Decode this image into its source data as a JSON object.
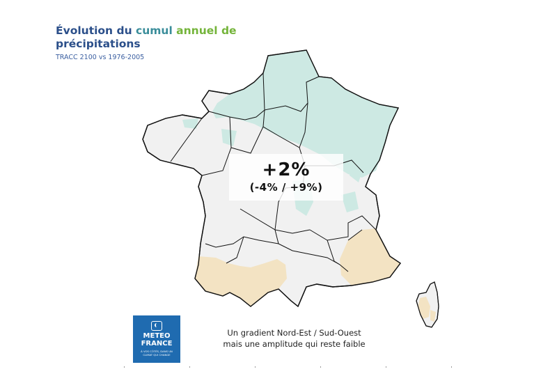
{
  "title": {
    "part1": "Évolution du ",
    "part2": "cumul",
    "part3": " annuel de",
    "line2": "précipitations"
  },
  "subtitle": "TRACC 2100 vs 1976-2005",
  "highlight": {
    "value": "+2%",
    "range": "(-4% / +9%)"
  },
  "caption": {
    "line1": "Un gradient Nord-Est / Sud-Ouest",
    "line2": "mais une amplitude qui reste faible"
  },
  "logo": {
    "line1": "METEO",
    "line2": "FRANCE",
    "tagline": "À VOS CÔTÉS, DANS UN CLIMAT QUI CHANGE"
  },
  "map": {
    "region": "France",
    "colors": {
      "base_fill": "#f1f1f1",
      "increase_fill": "#cde9e3",
      "decrease_fill": "#f3e3c3",
      "border": "#111111",
      "title_blue": "#2b4f8a",
      "title_teal": "#3a8d9a",
      "title_green": "#74b43a",
      "logo_blue": "#1f6bb0"
    },
    "legend_meaning": {
      "increase": "nord-est",
      "decrease": "sud-ouest"
    }
  }
}
